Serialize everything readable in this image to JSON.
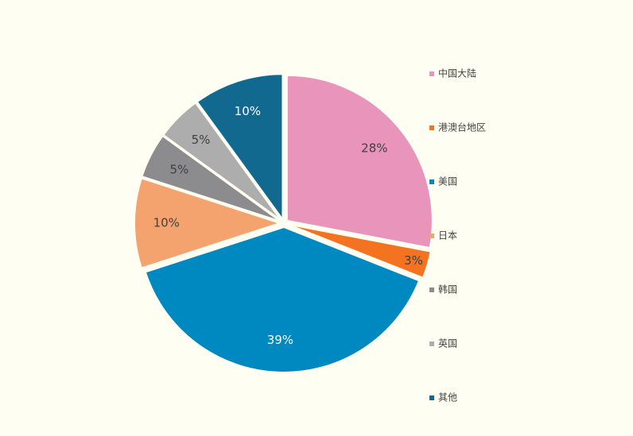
{
  "chart_data": {
    "type": "pie",
    "categories": [
      "中国大陆",
      "港澳台地区",
      "美国",
      "日本",
      "韩国",
      "英国",
      "其他"
    ],
    "values": [
      28,
      3,
      39,
      10,
      5,
      5,
      10
    ],
    "value_labels": [
      "28%",
      "3%",
      "39%",
      "10%",
      "5%",
      "5%",
      "10%"
    ],
    "colors": [
      "#e994bb",
      "#f47321",
      "#0088c0",
      "#f5a36e",
      "#8c8b8d",
      "#aeadae",
      "#126990"
    ],
    "legend": "right"
  }
}
